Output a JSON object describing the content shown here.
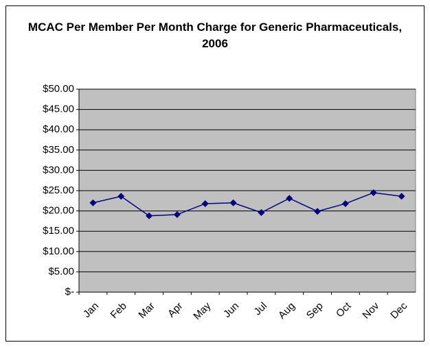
{
  "chart_data": {
    "type": "line",
    "title": "MCAC Per Member Per Month Charge for Generic Pharmaceuticals, 2006",
    "categories": [
      "Jan",
      "Feb",
      "Mar",
      "Apr",
      "May",
      "Jun",
      "Jul",
      "Aug",
      "Sep",
      "Oct",
      "Nov",
      "Dec"
    ],
    "series": [
      {
        "name": null,
        "color": "#000080",
        "values": [
          22.0,
          23.6,
          18.8,
          19.1,
          21.8,
          22.0,
          19.6,
          23.1,
          19.9,
          21.8,
          24.5,
          23.6
        ]
      }
    ],
    "ylim": [
      0,
      50
    ],
    "yticks": [
      {
        "value": 0,
        "label": "$-"
      },
      {
        "value": 5,
        "label": "$5.00"
      },
      {
        "value": 10,
        "label": "$10.00"
      },
      {
        "value": 15,
        "label": "$15.00"
      },
      {
        "value": 20,
        "label": "$20.00"
      },
      {
        "value": 25,
        "label": "$25.00"
      },
      {
        "value": 30,
        "label": "$30.00"
      },
      {
        "value": 35,
        "label": "$35.00"
      },
      {
        "value": 40,
        "label": "$40.00"
      },
      {
        "value": 45,
        "label": "$45.00"
      },
      {
        "value": 50,
        "label": "$50.00"
      }
    ],
    "grid": true,
    "plot_background": "#c0c0c0"
  }
}
